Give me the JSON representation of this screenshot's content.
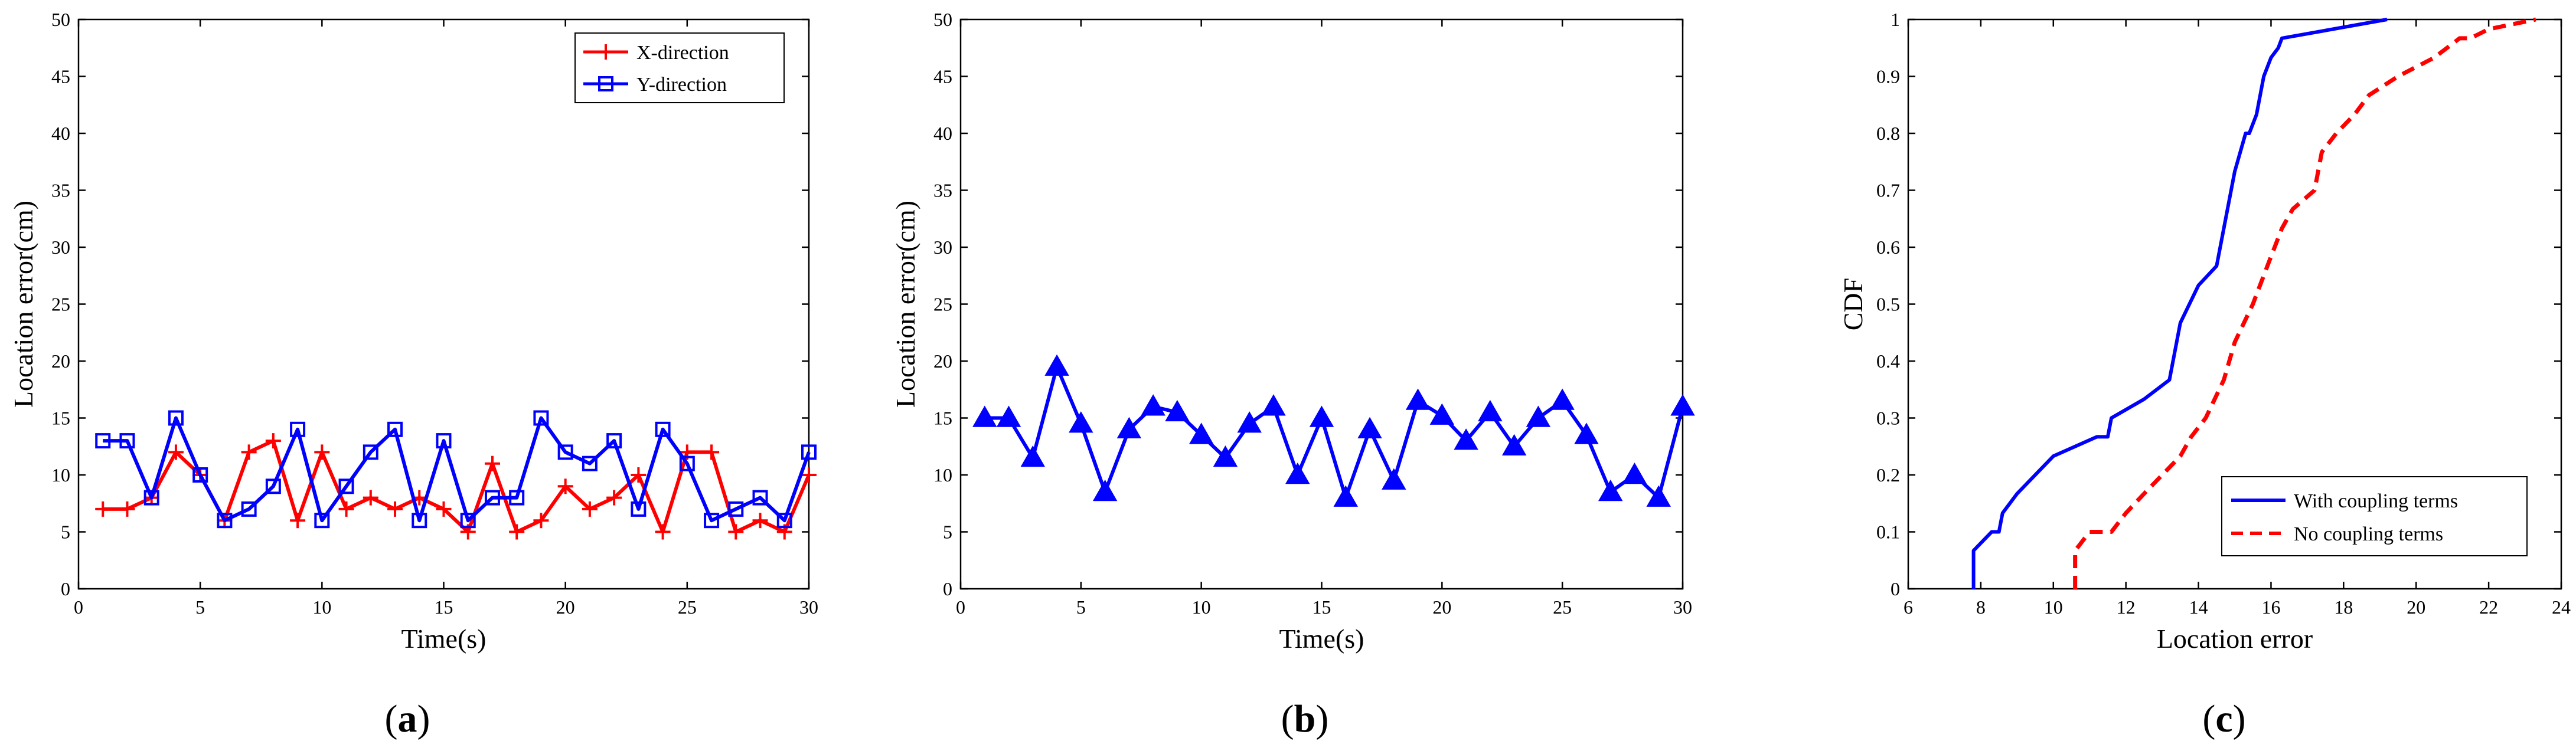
{
  "chart_data": [
    {
      "type": "line",
      "caption": "a",
      "xlabel": "Time(s)",
      "ylabel": "Location error(cm)",
      "xlim": [
        0,
        30
      ],
      "ylim": [
        0,
        50
      ],
      "xticks": [
        0,
        5,
        10,
        15,
        20,
        25,
        30
      ],
      "yticks": [
        0,
        5,
        10,
        15,
        20,
        25,
        30,
        35,
        40,
        45,
        50
      ],
      "grid": false,
      "legend": "top-right",
      "x": [
        1,
        2,
        3,
        4,
        5,
        6,
        7,
        8,
        9,
        10,
        11,
        12,
        13,
        14,
        15,
        16,
        17,
        18,
        19,
        20,
        21,
        22,
        23,
        24,
        25,
        26,
        27,
        28,
        29,
        30
      ],
      "series": [
        {
          "name": "X-direction",
          "color": "#ff0000",
          "marker": "plus",
          "values": [
            7,
            7,
            8,
            12,
            10,
            6,
            12,
            13,
            6,
            12,
            7,
            8,
            7,
            8,
            7,
            5,
            11,
            5,
            6,
            9,
            7,
            8,
            10,
            5,
            12,
            12,
            5,
            6,
            5,
            10
          ]
        },
        {
          "name": "Y-direction",
          "color": "#0000ff",
          "marker": "square",
          "values": [
            13,
            13,
            8,
            15,
            10,
            6,
            7,
            9,
            14,
            6,
            9,
            12,
            14,
            6,
            13,
            6,
            8,
            8,
            15,
            12,
            11,
            13,
            7,
            14,
            11,
            6,
            7,
            8,
            6,
            12
          ]
        }
      ]
    },
    {
      "type": "line",
      "caption": "b",
      "xlabel": "Time(s)",
      "ylabel": "Location error(cm)",
      "xlim": [
        0,
        30
      ],
      "ylim": [
        0,
        50
      ],
      "xticks": [
        0,
        5,
        10,
        15,
        20,
        25,
        30
      ],
      "yticks": [
        0,
        5,
        10,
        15,
        20,
        25,
        30,
        35,
        40,
        45,
        50
      ],
      "grid": false,
      "x": [
        1,
        2,
        3,
        4,
        5,
        6,
        7,
        8,
        9,
        10,
        11,
        12,
        13,
        14,
        15,
        16,
        17,
        18,
        19,
        20,
        21,
        22,
        23,
        24,
        25,
        26,
        27,
        28,
        29,
        30
      ],
      "series": [
        {
          "color": "#0000ff",
          "marker": "triangle",
          "values": [
            15,
            15,
            11.5,
            19.5,
            14.5,
            8.5,
            14,
            16,
            15.5,
            13.5,
            11.5,
            14.5,
            16,
            10,
            15,
            8,
            14,
            9.5,
            16.5,
            15.2,
            13,
            15.5,
            12.5,
            15,
            16.5,
            13.5,
            8.5,
            10,
            8,
            16
          ]
        }
      ]
    },
    {
      "type": "line",
      "caption": "c",
      "xlabel": "Location error",
      "ylabel": "CDF",
      "xlim": [
        6,
        24
      ],
      "ylim": [
        0,
        1
      ],
      "xticks": [
        6,
        8,
        10,
        12,
        14,
        16,
        18,
        20,
        22,
        24
      ],
      "yticks": [
        0,
        0.1,
        0.2,
        0.3,
        0.4,
        0.5,
        0.6,
        0.7,
        0.8,
        0.9,
        1
      ],
      "grid": false,
      "legend": "bottom-right",
      "series": [
        {
          "name": "With coupling terms",
          "color": "#0000ff",
          "dash": "solid",
          "x": [
            7.8,
            7.8,
            8.3,
            8.5,
            8.6,
            9.0,
            9.5,
            10.0,
            11.2,
            11.5,
            11.6,
            12.5,
            13.2,
            13.5,
            14.0,
            14.5,
            15.0,
            15.3,
            15.4,
            15.6,
            15.8,
            16.0,
            16.2,
            16.3,
            19.2
          ],
          "values": [
            0,
            0.067,
            0.1,
            0.1,
            0.133,
            0.167,
            0.2,
            0.233,
            0.267,
            0.267,
            0.3,
            0.333,
            0.367,
            0.467,
            0.533,
            0.567,
            0.733,
            0.8,
            0.8,
            0.833,
            0.9,
            0.933,
            0.95,
            0.967,
            1.0
          ]
        },
        {
          "name": "No coupling terms",
          "color": "#ff0000",
          "dash": "dashed",
          "x": [
            10.6,
            10.6,
            11.0,
            11.3,
            11.6,
            12.0,
            12.5,
            13.0,
            13.5,
            13.8,
            14.2,
            14.7,
            15.0,
            15.5,
            15.9,
            16.3,
            16.6,
            17.2,
            17.4,
            17.8,
            18.3,
            18.7,
            19.5,
            20.5,
            21.2,
            21.5,
            22.0,
            23.3
          ],
          "values": [
            0,
            0.067,
            0.1,
            0.1,
            0.1,
            0.133,
            0.167,
            0.2,
            0.233,
            0.267,
            0.3,
            0.367,
            0.433,
            0.5,
            0.567,
            0.633,
            0.667,
            0.7,
            0.767,
            0.8,
            0.833,
            0.867,
            0.9,
            0.933,
            0.967,
            0.967,
            0.983,
            1.0
          ]
        }
      ]
    }
  ]
}
